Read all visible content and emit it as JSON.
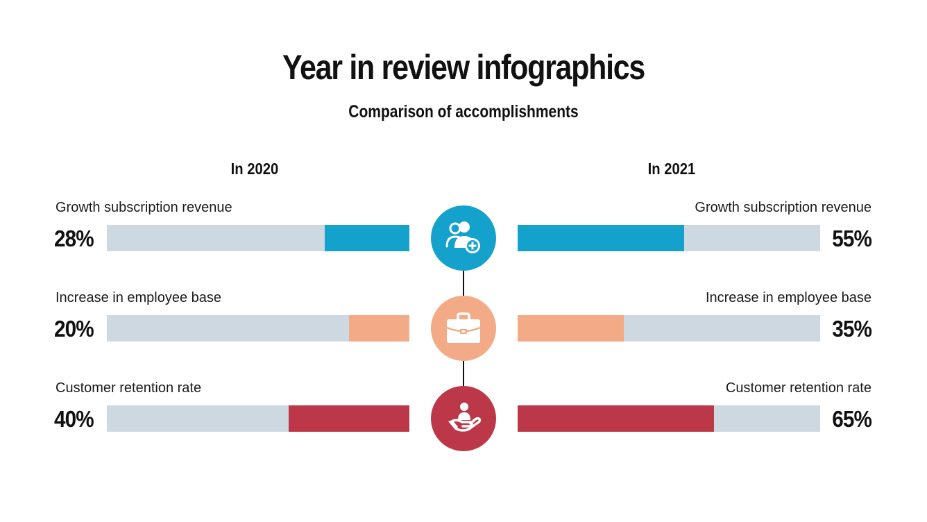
{
  "header": {
    "title": "Year in review infographics",
    "subtitle": "Comparison of accomplishments"
  },
  "chart_data": {
    "type": "bar",
    "title": "Year in review infographics",
    "subtitle": "Comparison of accomplishments",
    "categories": [
      "Growth subscription revenue",
      "Increase in employee base",
      "Customer retention rate"
    ],
    "series": [
      {
        "name": "In 2020",
        "values": [
          28,
          20,
          40
        ],
        "labels": [
          "28%",
          "20%",
          "40%"
        ]
      },
      {
        "name": "In 2021",
        "values": [
          55,
          35,
          65
        ],
        "labels": [
          "55%",
          "35%",
          "65%"
        ]
      }
    ],
    "unit": "%",
    "xlim": [
      0,
      100
    ],
    "colors": [
      "#14a2cc",
      "#f2ab86",
      "#bc3748"
    ],
    "track_color": "#cdd8e1",
    "icons": [
      "user-add-icon",
      "briefcase-icon",
      "hand-person-icon"
    ],
    "grid": false,
    "legend": "none"
  }
}
